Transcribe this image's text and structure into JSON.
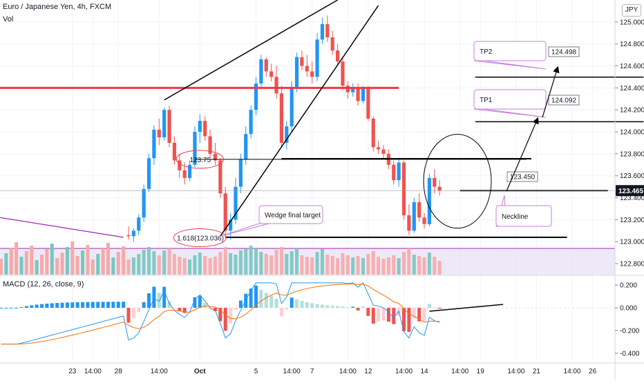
{
  "header": {
    "symbol": "Euro / Japanese Yen, 4h, FXCM",
    "volume_label": "Vol",
    "currency_badge": "JPY"
  },
  "macd": {
    "label": "MACD (12, 26, close, 9)",
    "tick_labels": [
      "0.200",
      "0.000",
      "-0.200",
      "-0.400"
    ],
    "ylim": [
      -0.48,
      0.28
    ]
  },
  "chart_data": {
    "type": "candlestick",
    "title": "Euro / Japanese Yen, 4h, FXCM",
    "ylim": [
      122.7,
      125.2
    ],
    "y_ticks": [
      {
        "value": 125.0,
        "label": "125.000"
      },
      {
        "value": 124.8,
        "label": "124.800"
      },
      {
        "value": 124.6,
        "label": "124.600"
      },
      {
        "value": 124.4,
        "label": "124.400"
      },
      {
        "value": 124.2,
        "label": "124.200"
      },
      {
        "value": 124.0,
        "label": "124.000"
      },
      {
        "value": 123.8,
        "label": "123.800"
      },
      {
        "value": 123.6,
        "label": "123.600"
      },
      {
        "value": 123.4,
        "label": "123.400"
      },
      {
        "value": 123.2,
        "label": "123.200"
      },
      {
        "value": 123.0,
        "label": "123.000"
      },
      {
        "value": 122.8,
        "label": "122.800"
      }
    ],
    "x_ticks": [
      {
        "bar": -11,
        "label": "23"
      },
      {
        "bar": -7,
        "label": "14:00"
      },
      {
        "bar": -2,
        "label": "28"
      },
      {
        "bar": 6,
        "label": "14:00"
      },
      {
        "bar": 14,
        "label": "Oct"
      },
      {
        "bar": 25,
        "label": "5"
      },
      {
        "bar": 32,
        "label": "14:00"
      },
      {
        "bar": 36,
        "label": "7"
      },
      {
        "bar": 43,
        "label": "14:00"
      },
      {
        "bar": 47,
        "label": "12"
      },
      {
        "bar": 54,
        "label": "14:00"
      },
      {
        "bar": 58,
        "label": "14"
      },
      {
        "bar": 65,
        "label": "14:00"
      },
      {
        "bar": 69,
        "label": "19"
      },
      {
        "bar": 76,
        "label": "14:00"
      },
      {
        "bar": 80,
        "label": "21"
      },
      {
        "bar": 87,
        "label": "14:00"
      },
      {
        "bar": 91,
        "label": "26"
      }
    ],
    "candles": [
      {
        "o": 123.06,
        "h": 123.14,
        "l": 123.02,
        "c": 123.05
      },
      {
        "o": 123.05,
        "h": 123.12,
        "l": 123.0,
        "c": 123.1
      },
      {
        "o": 123.1,
        "h": 123.25,
        "l": 123.06,
        "c": 123.22
      },
      {
        "o": 123.22,
        "h": 123.52,
        "l": 123.18,
        "c": 123.48
      },
      {
        "o": 123.48,
        "h": 123.8,
        "l": 123.45,
        "c": 123.76
      },
      {
        "o": 123.76,
        "h": 124.06,
        "l": 123.7,
        "c": 124.02
      },
      {
        "o": 124.02,
        "h": 124.12,
        "l": 123.88,
        "c": 123.95
      },
      {
        "o": 123.95,
        "h": 124.22,
        "l": 123.92,
        "c": 124.2
      },
      {
        "o": 124.2,
        "h": 124.24,
        "l": 123.86,
        "c": 123.9
      },
      {
        "o": 123.9,
        "h": 123.96,
        "l": 123.7,
        "c": 123.74
      },
      {
        "o": 123.74,
        "h": 123.8,
        "l": 123.58,
        "c": 123.65
      },
      {
        "o": 123.65,
        "h": 123.72,
        "l": 123.52,
        "c": 123.58
      },
      {
        "o": 123.58,
        "h": 123.74,
        "l": 123.55,
        "c": 123.7
      },
      {
        "o": 123.7,
        "h": 124.05,
        "l": 123.68,
        "c": 124.0
      },
      {
        "o": 124.0,
        "h": 124.16,
        "l": 123.9,
        "c": 124.1
      },
      {
        "o": 124.1,
        "h": 124.14,
        "l": 123.92,
        "c": 123.96
      },
      {
        "o": 123.96,
        "h": 124.02,
        "l": 123.76,
        "c": 123.8
      },
      {
        "o": 123.8,
        "h": 123.9,
        "l": 123.7,
        "c": 123.74
      },
      {
        "o": 123.74,
        "h": 123.76,
        "l": 123.4,
        "c": 123.44
      },
      {
        "o": 123.44,
        "h": 123.5,
        "l": 123.04,
        "c": 123.1
      },
      {
        "o": 123.1,
        "h": 123.26,
        "l": 123.02,
        "c": 123.2
      },
      {
        "o": 123.2,
        "h": 123.58,
        "l": 123.16,
        "c": 123.5
      },
      {
        "o": 123.5,
        "h": 123.8,
        "l": 123.44,
        "c": 123.75
      },
      {
        "o": 123.75,
        "h": 124.05,
        "l": 123.7,
        "c": 123.98
      },
      {
        "o": 123.98,
        "h": 124.24,
        "l": 123.94,
        "c": 124.2
      },
      {
        "o": 124.2,
        "h": 124.5,
        "l": 124.15,
        "c": 124.44
      },
      {
        "o": 124.44,
        "h": 124.7,
        "l": 124.4,
        "c": 124.66
      },
      {
        "o": 124.66,
        "h": 124.68,
        "l": 124.5,
        "c": 124.55
      },
      {
        "o": 124.55,
        "h": 124.62,
        "l": 124.46,
        "c": 124.5
      },
      {
        "o": 124.5,
        "h": 124.6,
        "l": 124.3,
        "c": 124.35
      },
      {
        "o": 124.35,
        "h": 124.42,
        "l": 123.86,
        "c": 123.9
      },
      {
        "o": 123.9,
        "h": 124.1,
        "l": 123.84,
        "c": 124.05
      },
      {
        "o": 124.05,
        "h": 124.46,
        "l": 124.0,
        "c": 124.4
      },
      {
        "o": 124.4,
        "h": 124.72,
        "l": 124.36,
        "c": 124.68
      },
      {
        "o": 124.68,
        "h": 124.74,
        "l": 124.56,
        "c": 124.6
      },
      {
        "o": 124.6,
        "h": 124.7,
        "l": 124.5,
        "c": 124.55
      },
      {
        "o": 124.55,
        "h": 124.64,
        "l": 124.44,
        "c": 124.5
      },
      {
        "o": 124.5,
        "h": 124.9,
        "l": 124.46,
        "c": 124.84
      },
      {
        "o": 124.84,
        "h": 125.04,
        "l": 124.8,
        "c": 124.98
      },
      {
        "o": 124.98,
        "h": 125.06,
        "l": 124.82,
        "c": 124.86
      },
      {
        "o": 124.86,
        "h": 124.92,
        "l": 124.7,
        "c": 124.74
      },
      {
        "o": 124.74,
        "h": 124.8,
        "l": 124.6,
        "c": 124.64
      },
      {
        "o": 124.64,
        "h": 124.68,
        "l": 124.38,
        "c": 124.42
      },
      {
        "o": 124.42,
        "h": 124.46,
        "l": 124.3,
        "c": 124.36
      },
      {
        "o": 124.36,
        "h": 124.44,
        "l": 124.32,
        "c": 124.4
      },
      {
        "o": 124.4,
        "h": 124.44,
        "l": 124.24,
        "c": 124.28
      },
      {
        "o": 124.28,
        "h": 124.42,
        "l": 124.26,
        "c": 124.4
      },
      {
        "o": 124.4,
        "h": 124.42,
        "l": 124.1,
        "c": 124.12
      },
      {
        "o": 124.12,
        "h": 124.14,
        "l": 123.82,
        "c": 123.86
      },
      {
        "o": 123.86,
        "h": 123.92,
        "l": 123.8,
        "c": 123.84
      },
      {
        "o": 123.84,
        "h": 123.88,
        "l": 123.76,
        "c": 123.8
      },
      {
        "o": 123.8,
        "h": 123.84,
        "l": 123.66,
        "c": 123.7
      },
      {
        "o": 123.7,
        "h": 123.74,
        "l": 123.52,
        "c": 123.56
      },
      {
        "o": 123.56,
        "h": 123.76,
        "l": 123.5,
        "c": 123.72
      },
      {
        "o": 123.72,
        "h": 123.74,
        "l": 123.2,
        "c": 123.24
      },
      {
        "o": 123.24,
        "h": 123.34,
        "l": 123.06,
        "c": 123.1
      },
      {
        "o": 123.1,
        "h": 123.4,
        "l": 123.08,
        "c": 123.36
      },
      {
        "o": 123.36,
        "h": 123.44,
        "l": 123.18,
        "c": 123.22
      },
      {
        "o": 123.22,
        "h": 123.26,
        "l": 123.12,
        "c": 123.16
      },
      {
        "o": 123.16,
        "h": 123.62,
        "l": 123.14,
        "c": 123.58
      },
      {
        "o": 123.58,
        "h": 123.66,
        "l": 123.44,
        "c": 123.5
      },
      {
        "o": 123.5,
        "h": 123.56,
        "l": 123.42,
        "c": 123.465
      }
    ],
    "volume": [
      22,
      25,
      30,
      36,
      40,
      34,
      28,
      35,
      38,
      30,
      26,
      24,
      22,
      28,
      32,
      27,
      24,
      26,
      33,
      40,
      31,
      29,
      35,
      37,
      42,
      38,
      33,
      30,
      28,
      36,
      40,
      30,
      34,
      39,
      28,
      26,
      25,
      33,
      37,
      29,
      27,
      24,
      31,
      28,
      25,
      27,
      24,
      30,
      34,
      26,
      23,
      25,
      28,
      24,
      33,
      38,
      29,
      27,
      25,
      32,
      26,
      20
    ]
  },
  "levels": {
    "resistance_red": 124.4,
    "neckline": 123.465,
    "last_price": 123.465,
    "last_price_label": "123.465"
  },
  "annotations": {
    "fib_1618": "1.618(123.036)",
    "fib_label_2": "123.75",
    "wedge_final_target": "Wedge final target",
    "tp2": "TP2",
    "tp1": "TP1",
    "tp2_value": "124.498",
    "tp1_value": "124.092",
    "entry_value": "123.450",
    "neckline": "Neckline"
  },
  "colors": {
    "up": "#2196f3",
    "down": "#ef5350",
    "vol_up": "#76c7c0",
    "vol_down": "#f7a8a8",
    "resistance": "#f23645",
    "macd_line": "#2196f3",
    "signal_line": "#ff6d00",
    "callout_border": "#c77ddf"
  }
}
